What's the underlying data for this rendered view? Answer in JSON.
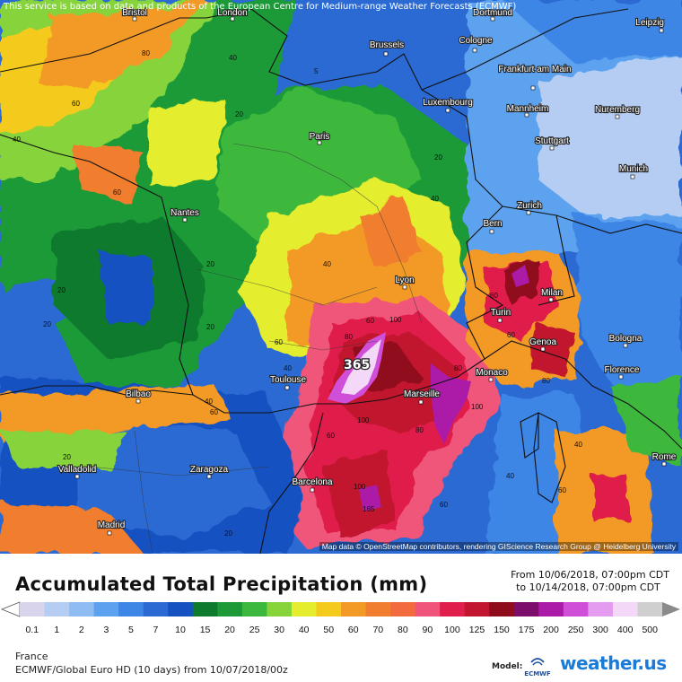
{
  "header": {
    "disclaimer": "This service is based on data and products of the European Centre for Medium-range Weather Forecasts (ECMWF)"
  },
  "map": {
    "attribution": "Map data © OpenStreetMap contributors, rendering GIScience Research Group @ Heidelberg University",
    "max_value_label": "365",
    "cities": [
      "Bristol",
      "London",
      "Dortmund",
      "Leipzig",
      "Brussels",
      "Cologne",
      "Frankfurt am Main",
      "Luxembourg",
      "Mannheim",
      "Nuremberg",
      "Paris",
      "Stuttgart",
      "Munich",
      "Nantes",
      "Zurich",
      "Bern",
      "Lyon",
      "Milan",
      "Turin",
      "Genoa",
      "Bologna",
      "Toulouse",
      "Monaco",
      "Marseille",
      "Florence",
      "Bilbao",
      "Valladolid",
      "Zaragoza",
      "Barcelona",
      "Rome",
      "Madrid"
    ],
    "contour_labels": [
      "40",
      "60",
      "80",
      "100",
      "20",
      "5",
      "365",
      "165"
    ]
  },
  "legend": {
    "title": "Accumulated Total Precipitation (mm)",
    "from": "From 10/06/2018, 07:00pm CDT",
    "to": "to 10/14/2018, 07:00pm CDT",
    "levels": [
      "0.1",
      "1",
      "2",
      "3",
      "5",
      "7",
      "10",
      "15",
      "20",
      "25",
      "30",
      "40",
      "50",
      "60",
      "70",
      "80",
      "90",
      "100",
      "125",
      "150",
      "175",
      "200",
      "250",
      "300",
      "400",
      "500"
    ],
    "colors": [
      "#d8d4ec",
      "#b5cdf2",
      "#8fbdf3",
      "#5da2ef",
      "#3e86e6",
      "#2a6ad2",
      "#1651c2",
      "#0e7a2e",
      "#1d9a37",
      "#3cb83e",
      "#86d33a",
      "#e5ee2e",
      "#f4cb1c",
      "#f39a26",
      "#f07e2e",
      "#f26a3e",
      "#f0547a",
      "#e01f4c",
      "#c2152f",
      "#8f0c1d",
      "#7d0d6a",
      "#ab1ba8",
      "#d04fd8",
      "#e49cf0",
      "#f3d8f8",
      "#cfcfcf"
    ]
  },
  "footer": {
    "region": "France",
    "model_line": "ECMWF/Global Euro HD (10 days) from 10/07/2018/00z",
    "model_tag": "Model:",
    "model_logo_text": "ECMWF",
    "brand": "weather.us"
  }
}
